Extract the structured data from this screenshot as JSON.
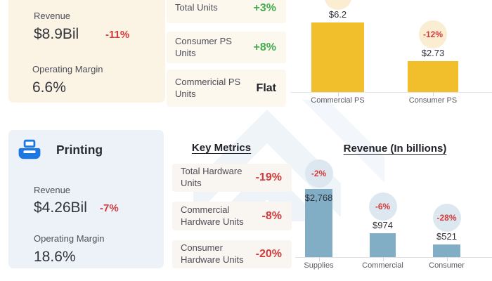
{
  "colors": {
    "positive": "#43ac4e",
    "negative": "#d23b3b",
    "gold_bar": "#f1bf2b",
    "steel_blue_bar": "#82aec5",
    "cream_card": "#fbf4e4",
    "blue_card": "#edf2f9",
    "printer_blue": "#1c77e0"
  },
  "personal_systems_card": {
    "revenue_label": "Revenue",
    "revenue_value": "$8.9Bil",
    "revenue_change": "-11%",
    "operating_margin_label": "Operating Margin",
    "operating_margin_value": "6.6%"
  },
  "ps_metrics": {
    "rows": [
      {
        "label": "Total Units",
        "value": "+3%"
      },
      {
        "label": "Consumer PS Units",
        "value": "+8%"
      },
      {
        "label": "Commericial PS Units",
        "value": "Flat"
      }
    ]
  },
  "printing_card": {
    "title": "Printing",
    "revenue_label": "Revenue",
    "revenue_value": "$4.26Bil",
    "revenue_change": "-7%",
    "operating_margin_label": "Operating Margin",
    "operating_margin_value": "18.6%"
  },
  "printing_metrics": {
    "heading": "Key Metrics",
    "rows": [
      {
        "label": "Total Hardware Units",
        "value": "-19%"
      },
      {
        "label": "Commercial Hardware Units",
        "value": "-8%"
      },
      {
        "label": "Consumer Hardware Units",
        "value": "-20%"
      }
    ]
  },
  "chart_data": [
    {
      "type": "bar",
      "title": "",
      "categories": [
        "Commercial PS",
        "Consumer PS"
      ],
      "values": [
        6.2,
        2.73
      ],
      "value_labels": [
        "$6.2",
        "$2.73"
      ],
      "change_badges": [
        "",
        "-12%"
      ],
      "badge_partial": [
        true,
        false
      ],
      "unit": "$ billions",
      "bar_color": "#f1bf2b",
      "badge_color": "#faedd2",
      "ylim": [
        0,
        6.5
      ],
      "grid": false,
      "legend": "none"
    },
    {
      "type": "bar",
      "title": "Revenue (In billions)",
      "categories": [
        "Supplies",
        "Commercial",
        "Consumer"
      ],
      "values": [
        2768,
        974,
        521
      ],
      "value_labels": [
        "$2,768",
        "$974",
        "$521"
      ],
      "change_badges": [
        "-2%",
        "-6%",
        "-28%"
      ],
      "value_inside": [
        true,
        false,
        false
      ],
      "bar_color": "#82aec5",
      "badge_color": "#dce7f0",
      "ylim": [
        0,
        2900
      ],
      "grid": false,
      "legend": "none"
    }
  ]
}
